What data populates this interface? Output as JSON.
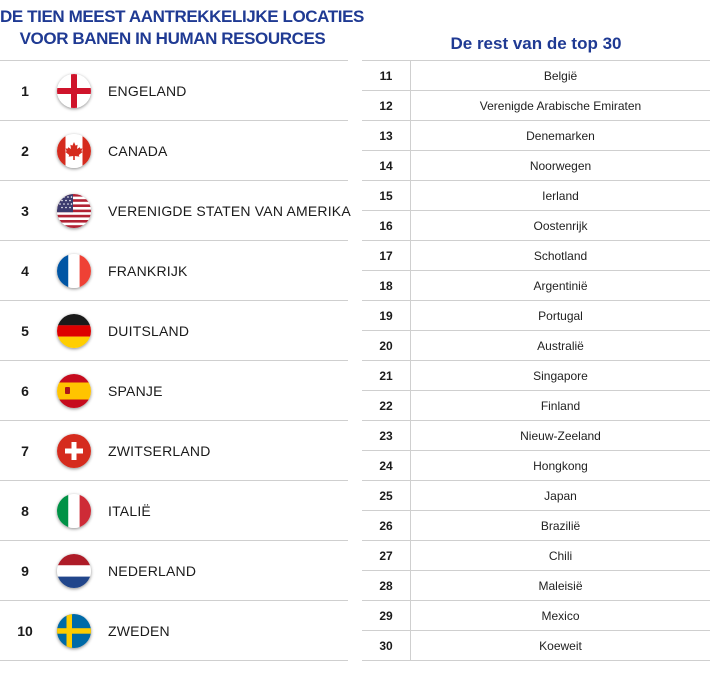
{
  "left": {
    "title_line1": "DE TIEN MEEST AANTREKKELIJKE LOCATIES",
    "title_line2": "VOOR BANEN IN HUMAN RESOURCES",
    "items": [
      {
        "rank": "1",
        "country": "ENGELAND",
        "flag_icon": "england-flag-icon"
      },
      {
        "rank": "2",
        "country": "CANADA",
        "flag_icon": "canada-flag-icon"
      },
      {
        "rank": "3",
        "country": "VERENIGDE STATEN VAN AMERIKA",
        "flag_icon": "usa-flag-icon"
      },
      {
        "rank": "4",
        "country": "FRANKRIJK",
        "flag_icon": "france-flag-icon"
      },
      {
        "rank": "5",
        "country": "DUITSLAND",
        "flag_icon": "germany-flag-icon"
      },
      {
        "rank": "6",
        "country": "SPANJE",
        "flag_icon": "spain-flag-icon"
      },
      {
        "rank": "7",
        "country": "ZWITSERLAND",
        "flag_icon": "switzerland-flag-icon"
      },
      {
        "rank": "8",
        "country": "ITALIË",
        "flag_icon": "italy-flag-icon"
      },
      {
        "rank": "9",
        "country": "NEDERLAND",
        "flag_icon": "netherlands-flag-icon"
      },
      {
        "rank": "10",
        "country": "ZWEDEN",
        "flag_icon": "sweden-flag-icon"
      }
    ]
  },
  "right": {
    "title": "De rest van de top 30",
    "items": [
      {
        "rank": "11",
        "country": "België"
      },
      {
        "rank": "12",
        "country": "Verenigde Arabische Emiraten"
      },
      {
        "rank": "13",
        "country": "Denemarken"
      },
      {
        "rank": "14",
        "country": "Noorwegen"
      },
      {
        "rank": "15",
        "country": "Ierland"
      },
      {
        "rank": "16",
        "country": "Oostenrijk"
      },
      {
        "rank": "17",
        "country": "Schotland"
      },
      {
        "rank": "18",
        "country": "Argentinië"
      },
      {
        "rank": "19",
        "country": "Portugal"
      },
      {
        "rank": "20",
        "country": "Australië"
      },
      {
        "rank": "21",
        "country": "Singapore"
      },
      {
        "rank": "22",
        "country": "Finland"
      },
      {
        "rank": "23",
        "country": "Nieuw-Zeeland"
      },
      {
        "rank": "24",
        "country": "Hongkong"
      },
      {
        "rank": "25",
        "country": "Japan"
      },
      {
        "rank": "26",
        "country": "Brazilië"
      },
      {
        "rank": "27",
        "country": "Chili"
      },
      {
        "rank": "28",
        "country": "Maleisië"
      },
      {
        "rank": "29",
        "country": "Mexico"
      },
      {
        "rank": "30",
        "country": "Koeweit"
      }
    ]
  },
  "colors": {
    "title": "#1f3a93",
    "rule": "#cfcfcf",
    "text": "#1a1a1a"
  }
}
